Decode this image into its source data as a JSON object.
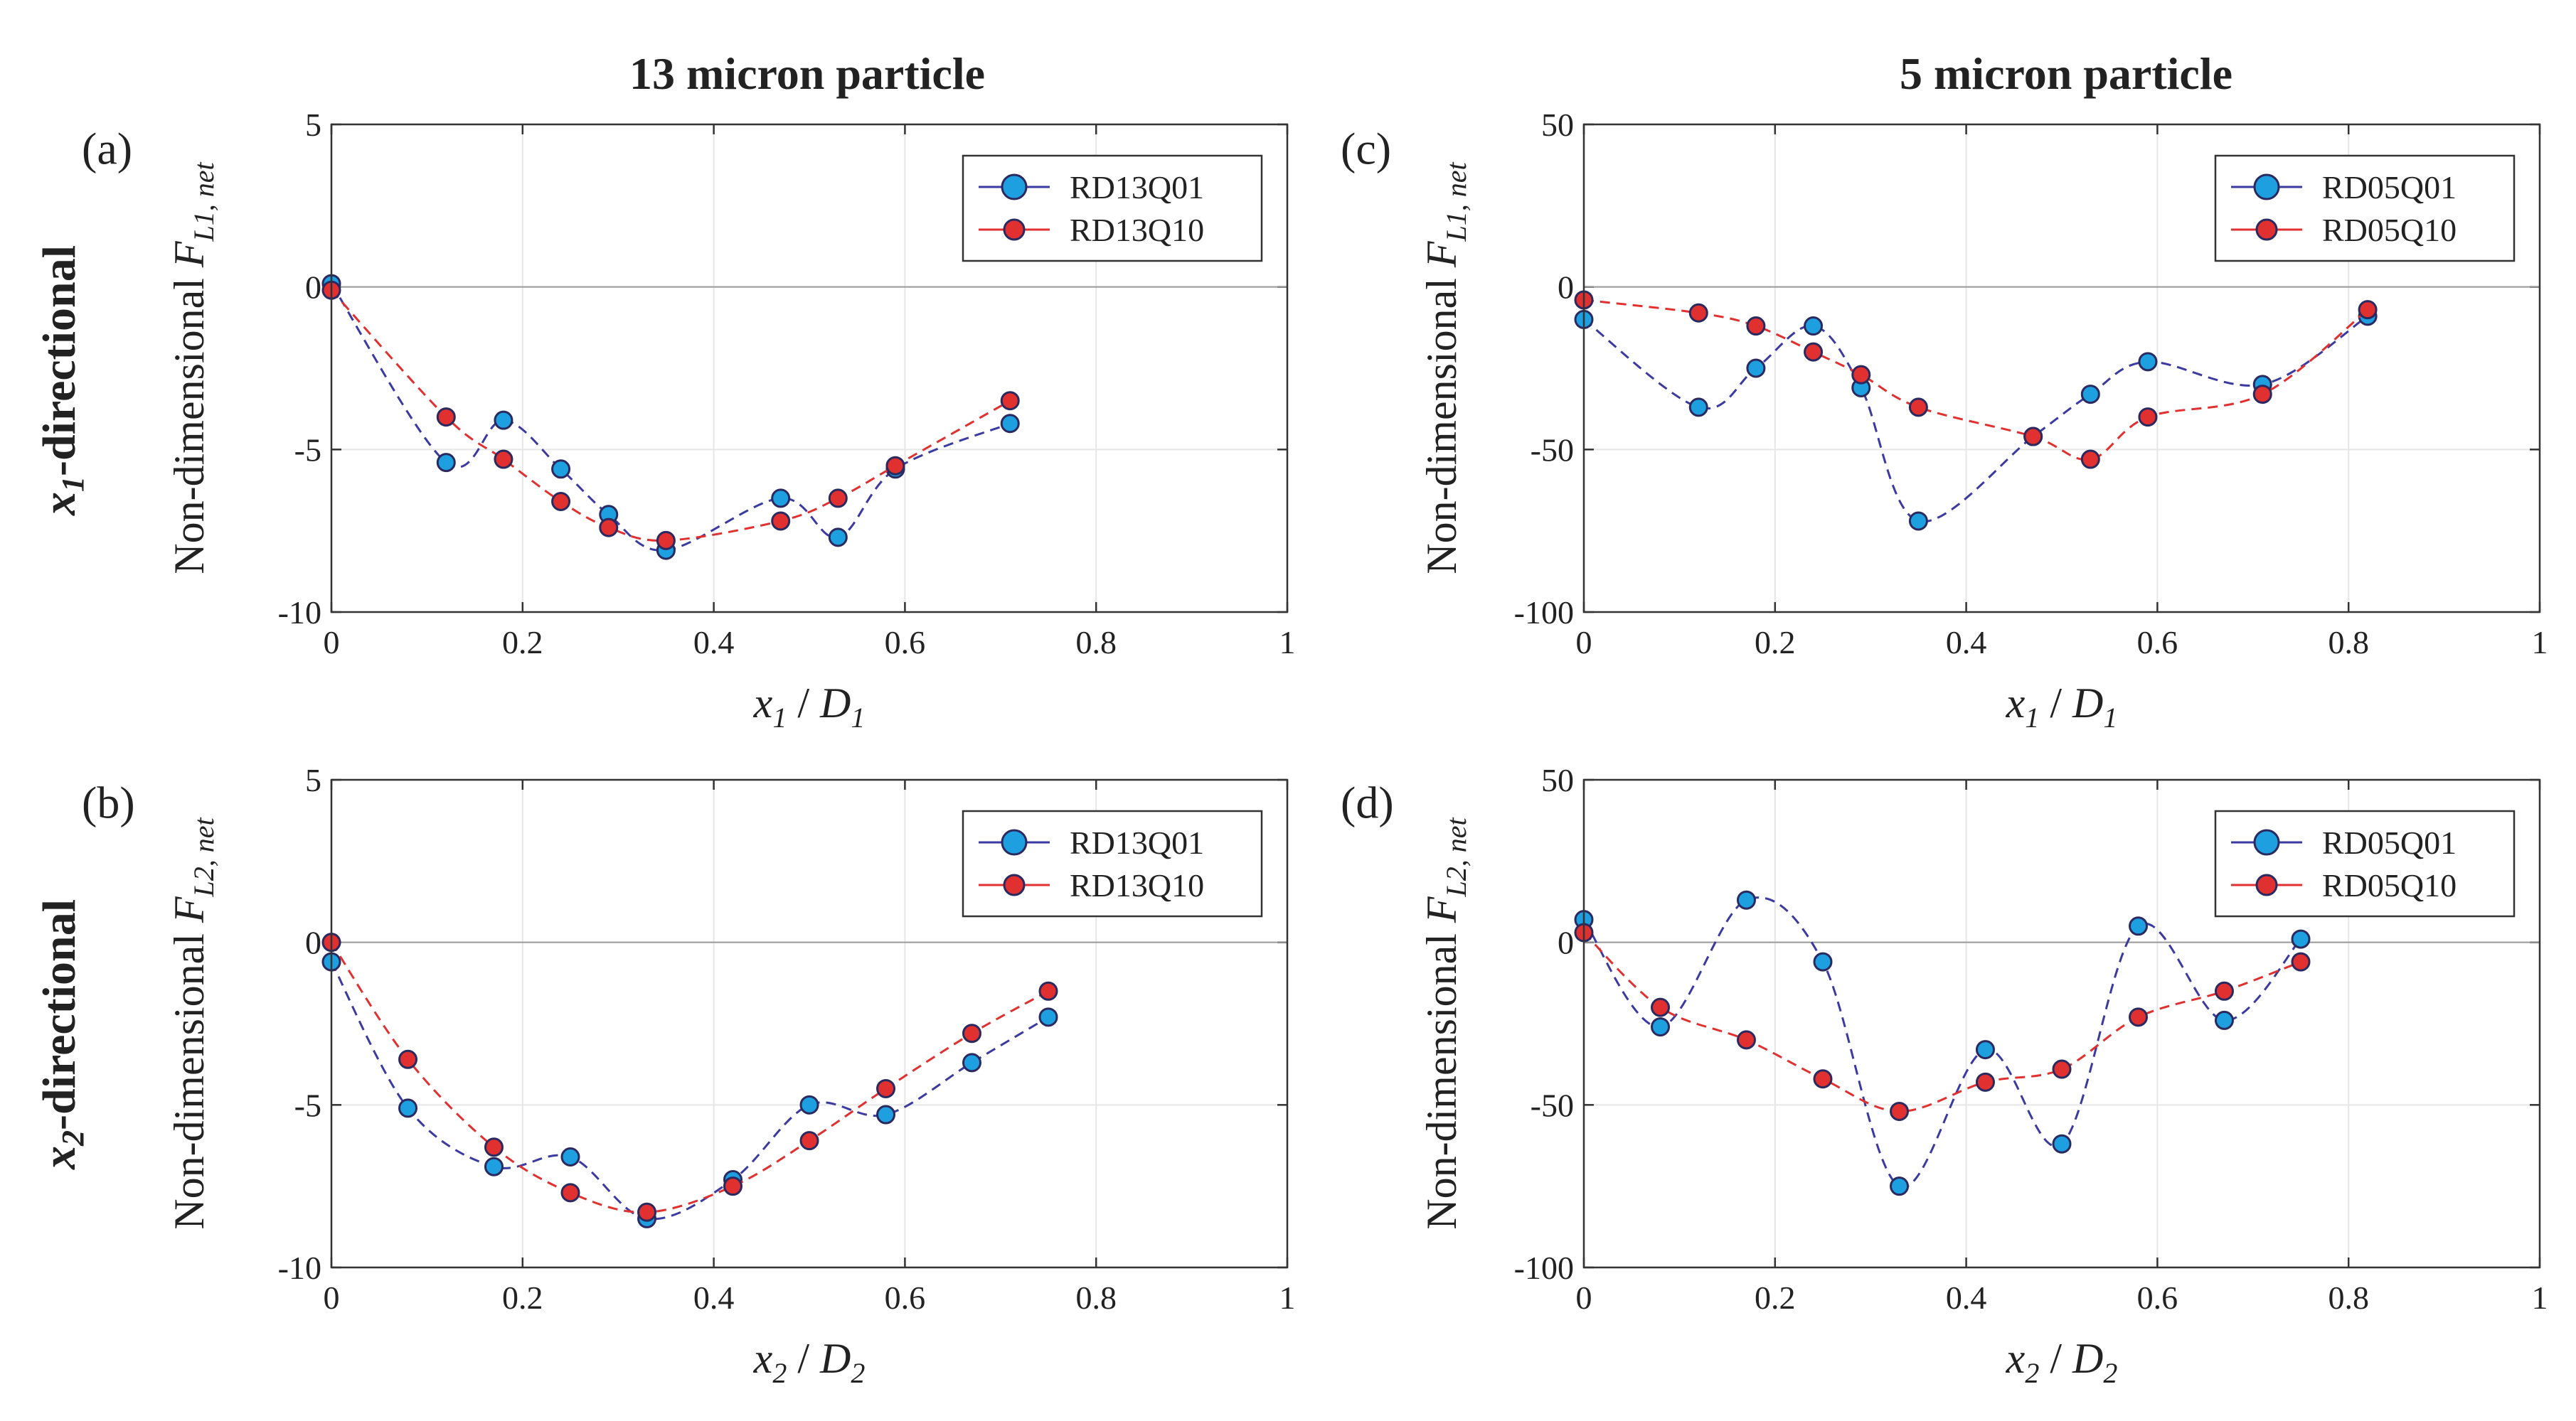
{
  "column_titles": [
    "13 micron particle",
    "5 micron particle"
  ],
  "row_titles": [
    {
      "var": "x",
      "sub": "1",
      "rest": "-directional"
    },
    {
      "var": "x",
      "sub": "2",
      "rest": "-directional"
    }
  ],
  "colors": {
    "series1_fill": "#1ea0e0",
    "series1_line": "#3a3aa0",
    "series2_fill": "#e03030",
    "series2_line": "#e03030",
    "marker_edge": "#2a2a60"
  },
  "chart_data": [
    {
      "type": "line",
      "panel_label": "(a)",
      "xlim": [
        0,
        1
      ],
      "ylim": [
        -10,
        5
      ],
      "xticks": [
        "0",
        "0.2",
        "0.4",
        "0.6",
        "0.8",
        "1"
      ],
      "yticks": [
        "-10",
        "-5",
        "0",
        "5"
      ],
      "xlabel": {
        "var": "x",
        "sub": "1",
        "sep": " / ",
        "den": "D",
        "densub": "1"
      },
      "ylabel": {
        "text": "Non-dimensional ",
        "var": "F",
        "sub": "L1, net"
      },
      "legend_position": "top-right",
      "series": [
        {
          "name": "RD13Q01",
          "x": [
            0,
            0.12,
            0.18,
            0.24,
            0.29,
            0.35,
            0.47,
            0.53,
            0.59,
            0.71
          ],
          "y": [
            0.1,
            -5.4,
            -4.1,
            -5.6,
            -7.0,
            -8.1,
            -6.5,
            -7.7,
            -5.6,
            -4.2
          ]
        },
        {
          "name": "RD13Q10",
          "x": [
            0,
            0.12,
            0.18,
            0.24,
            0.29,
            0.35,
            0.47,
            0.53,
            0.59,
            0.71
          ],
          "y": [
            -0.1,
            -4.0,
            -5.3,
            -6.6,
            -7.4,
            -7.8,
            -7.2,
            -6.5,
            -5.5,
            -3.5
          ]
        }
      ]
    },
    {
      "type": "line",
      "panel_label": "(b)",
      "xlim": [
        0,
        1
      ],
      "ylim": [
        -10,
        5
      ],
      "xticks": [
        "0",
        "0.2",
        "0.4",
        "0.6",
        "0.8",
        "1"
      ],
      "yticks": [
        "-10",
        "-5",
        "0",
        "5"
      ],
      "xlabel": {
        "var": "x",
        "sub": "2",
        "sep": " / ",
        "den": "D",
        "densub": "2"
      },
      "ylabel": {
        "text": "Non-dimensional ",
        "var": "F",
        "sub": "L2, net"
      },
      "legend_position": "top-right",
      "series": [
        {
          "name": "RD13Q01",
          "x": [
            0,
            0.08,
            0.17,
            0.25,
            0.33,
            0.42,
            0.5,
            0.58,
            0.67,
            0.75
          ],
          "y": [
            -0.6,
            -5.1,
            -6.9,
            -6.6,
            -8.5,
            -7.3,
            -5.0,
            -5.3,
            -3.7,
            -2.3
          ]
        },
        {
          "name": "RD13Q10",
          "x": [
            0,
            0.08,
            0.17,
            0.25,
            0.33,
            0.42,
            0.5,
            0.58,
            0.67,
            0.75
          ],
          "y": [
            0.0,
            -3.6,
            -6.3,
            -7.7,
            -8.3,
            -7.5,
            -6.1,
            -4.5,
            -2.8,
            -1.5
          ]
        }
      ]
    },
    {
      "type": "line",
      "panel_label": "(c)",
      "xlim": [
        0,
        1
      ],
      "ylim": [
        -100,
        50
      ],
      "xticks": [
        "0",
        "0.2",
        "0.4",
        "0.6",
        "0.8",
        "1"
      ],
      "yticks": [
        "-100",
        "-50",
        "0",
        "50"
      ],
      "xlabel": {
        "var": "x",
        "sub": "1",
        "sep": " / ",
        "den": "D",
        "densub": "1"
      },
      "ylabel": {
        "text": "Non-dimensional ",
        "var": "F",
        "sub": "L1, net"
      },
      "legend_position": "top-right",
      "series": [
        {
          "name": "RD05Q01",
          "x": [
            0,
            0.12,
            0.18,
            0.24,
            0.29,
            0.35,
            0.47,
            0.53,
            0.59,
            0.71,
            0.82
          ],
          "y": [
            -10,
            -37,
            -25,
            -12,
            -31,
            -72,
            -46,
            -33,
            -23,
            -30,
            -9
          ]
        },
        {
          "name": "RD05Q10",
          "x": [
            0,
            0.12,
            0.18,
            0.24,
            0.29,
            0.35,
            0.47,
            0.53,
            0.59,
            0.71,
            0.82
          ],
          "y": [
            -4,
            -8,
            -12,
            -20,
            -27,
            -37,
            -46,
            -53,
            -40,
            -33,
            -7
          ]
        }
      ]
    },
    {
      "type": "line",
      "panel_label": "(d)",
      "xlim": [
        0,
        1
      ],
      "ylim": [
        -100,
        50
      ],
      "xticks": [
        "0",
        "0.2",
        "0.4",
        "0.6",
        "0.8",
        "1"
      ],
      "yticks": [
        "-100",
        "-50",
        "0",
        "50"
      ],
      "xlabel": {
        "var": "x",
        "sub": "2",
        "sep": " / ",
        "den": "D",
        "densub": "2"
      },
      "ylabel": {
        "text": "Non-dimensional ",
        "var": "F",
        "sub": "L2, net"
      },
      "legend_position": "top-right",
      "series": [
        {
          "name": "RD05Q01",
          "x": [
            0,
            0.08,
            0.17,
            0.25,
            0.33,
            0.42,
            0.5,
            0.58,
            0.67,
            0.75
          ],
          "y": [
            7,
            -26,
            13,
            -6,
            -75,
            -33,
            -62,
            5,
            -24,
            1
          ]
        },
        {
          "name": "RD05Q10",
          "x": [
            0,
            0.08,
            0.17,
            0.25,
            0.33,
            0.42,
            0.5,
            0.58,
            0.67,
            0.75
          ],
          "y": [
            3,
            -20,
            -30,
            -42,
            -52,
            -43,
            -39,
            -23,
            -15,
            -6
          ]
        }
      ]
    }
  ]
}
